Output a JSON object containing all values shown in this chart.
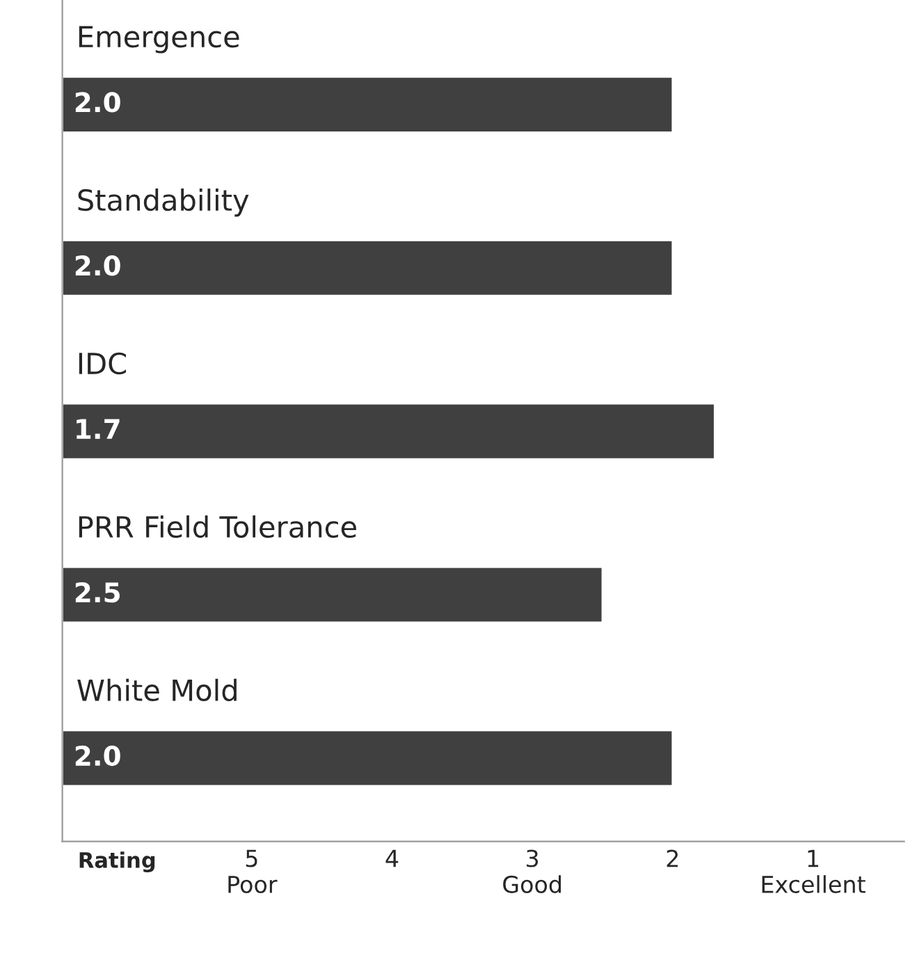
{
  "chart_data": {
    "type": "bar",
    "orientation": "horizontal",
    "categories": [
      "Emergence",
      "Standability",
      "IDC",
      "PRR Field Tolerance",
      "White Mold"
    ],
    "base": [
      6.35,
      6.35,
      6.35,
      6.35,
      6.35
    ],
    "values": [
      -4.35,
      -4.35,
      -4.65,
      -3.85,
      -4.35
    ],
    "value_labels": [
      "2.0",
      "2.0",
      "1.7",
      "2.5",
      "2.0"
    ],
    "color": "#404040",
    "xlabel": "Rating",
    "xlim": [
      6.35,
      0.35
    ],
    "xticks": [
      {
        "value": 5,
        "label": "5\nPoor"
      },
      4,
      {
        "value": 3,
        "label": "3\nGood"
      },
      2,
      {
        "value": 1,
        "label": "1\nExcellent"
      }
    ],
    "grid": false,
    "legend": false
  }
}
